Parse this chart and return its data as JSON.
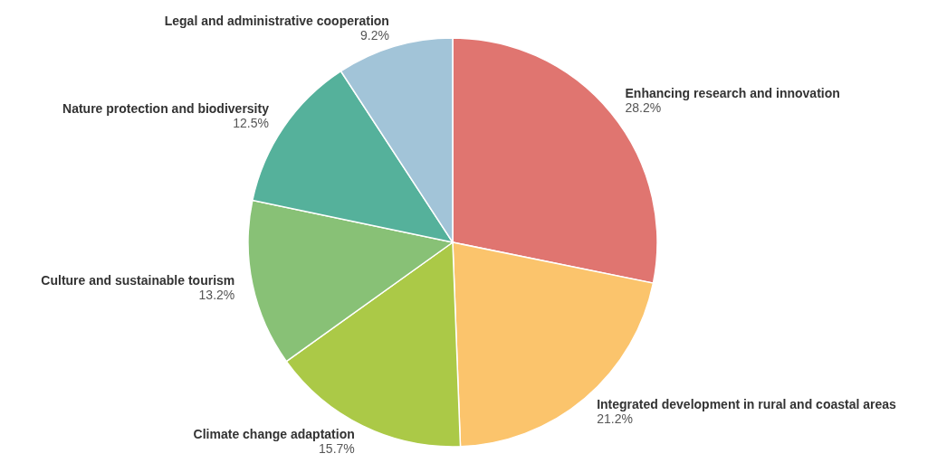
{
  "chart_data": {
    "type": "pie",
    "categories": [
      "Enhancing research and innovation",
      "Integrated development in rural and coastal areas",
      "Climate change adaptation",
      "Culture and sustainable tourism",
      "Nature protection and biodiversity",
      "Legal and administrative cooperation"
    ],
    "values": [
      28.2,
      21.2,
      15.7,
      13.2,
      12.5,
      9.2
    ],
    "value_labels": [
      "28.2%",
      "21.2%",
      "15.7%",
      "13.2%",
      "12.5%",
      "9.2%"
    ],
    "colors": [
      "#e07570",
      "#fbc46c",
      "#abc947",
      "#88c176",
      "#55b19b",
      "#a2c4d8"
    ]
  }
}
